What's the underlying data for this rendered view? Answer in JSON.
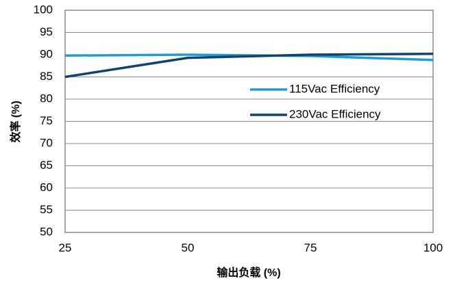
{
  "chart_data": {
    "type": "line",
    "title": "",
    "xlabel": "输出负载 (%)",
    "ylabel": "效率 (%)",
    "x": [
      25,
      50,
      75,
      100
    ],
    "xlim": [
      25,
      100
    ],
    "ylim": [
      50,
      100
    ],
    "x_ticks": [
      "25",
      "50",
      "75",
      "100"
    ],
    "y_ticks": [
      "50",
      "55",
      "60",
      "65",
      "70",
      "75",
      "80",
      "85",
      "90",
      "95",
      "100"
    ],
    "grid": "horizontal",
    "legend_position": "right",
    "series": [
      {
        "name": "115Vac Efficiency",
        "color": "#1f9bd7",
        "values": [
          89.8,
          90.0,
          89.7,
          88.8
        ]
      },
      {
        "name": "230Vac Efficiency",
        "color": "#10436e",
        "values": [
          85.0,
          89.3,
          90.0,
          90.2
        ]
      }
    ]
  }
}
